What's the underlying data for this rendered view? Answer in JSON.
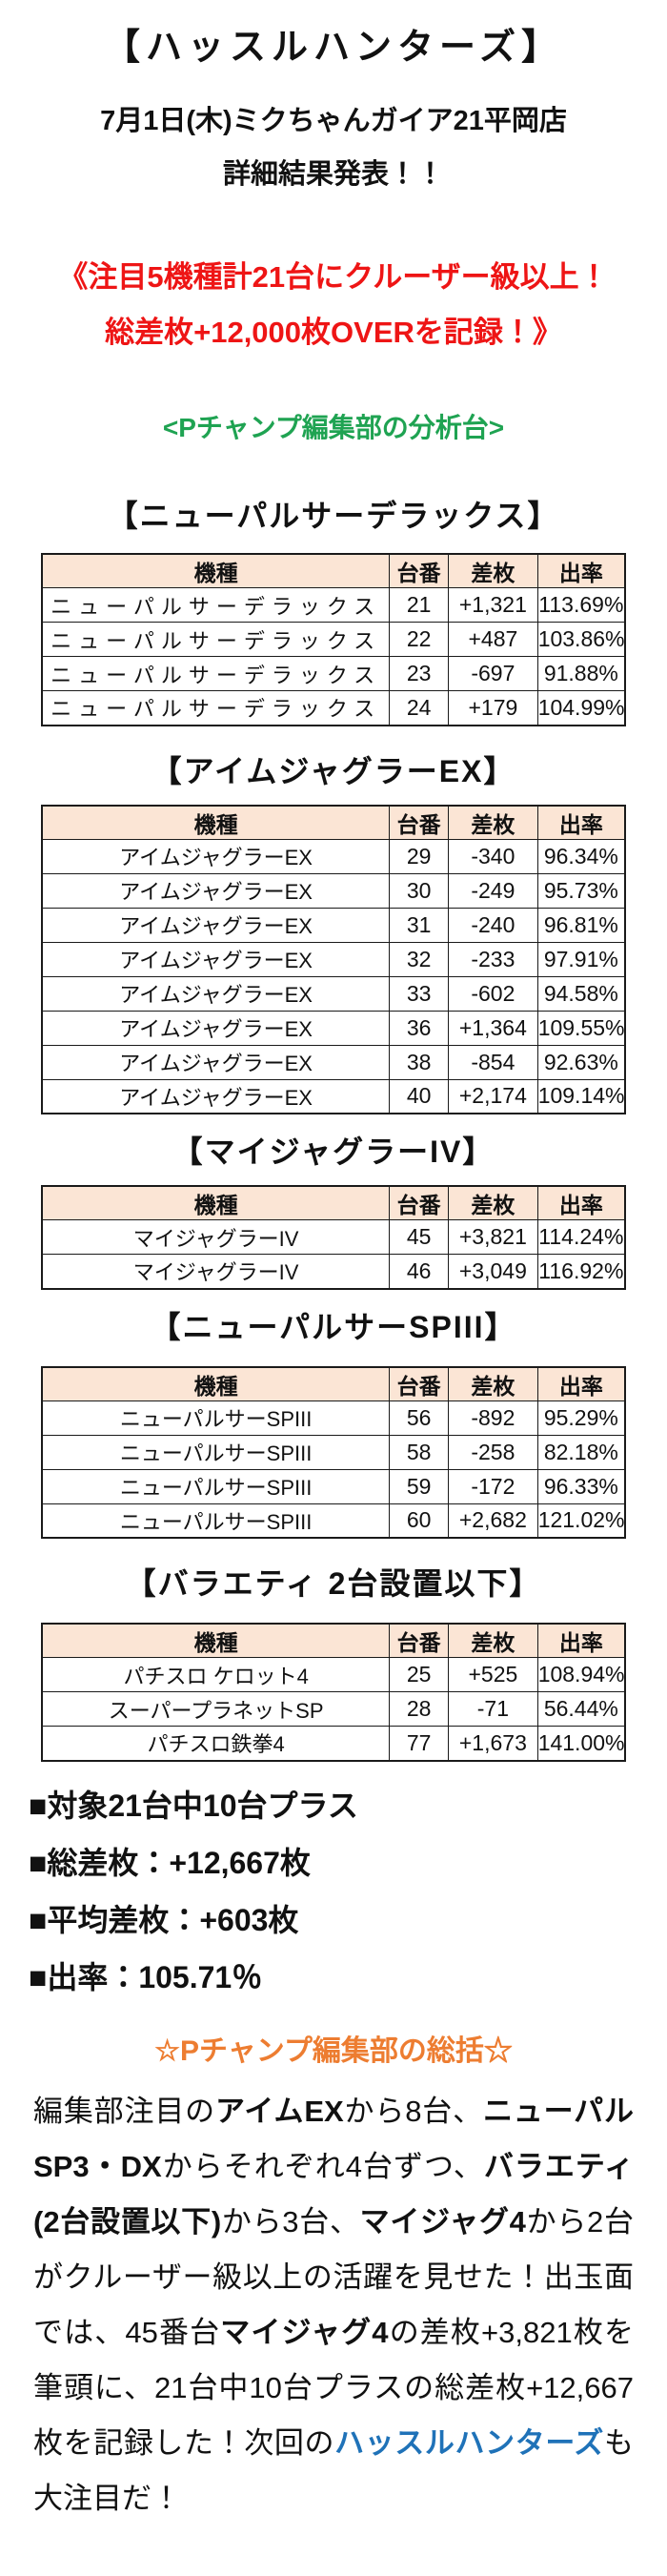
{
  "page": {
    "title": "【ハッスルハンターズ】",
    "subtitle_line1": "7月1日(木)ミクちゃんガイア21平岡店",
    "subtitle_line2": "詳細結果発表！！",
    "highlight_line1": "《注目5機種計21台にクルーザー級以上！",
    "highlight_line2": "総差枚+12,000枚OVERを記録！》",
    "analysis_label": "<Pチャンプ編集部の分析台>"
  },
  "colors": {
    "red": "#ee1515",
    "green": "#1fa352",
    "orange": "#ed7d31",
    "blue": "#1f72b8",
    "table_header_bg": "#fbe5d5"
  },
  "tables": [
    {
      "title": "【ニューパルサーデラックス】",
      "headers": [
        "機種",
        "台番",
        "差枚",
        "出率"
      ],
      "spaced": true,
      "rows": [
        {
          "machine": "ニューパルサーデラックス",
          "unit": "21",
          "diff": "+1,321",
          "rate": "113.69%"
        },
        {
          "machine": "ニューパルサーデラックス",
          "unit": "22",
          "diff": "+487",
          "rate": "103.86%"
        },
        {
          "machine": "ニューパルサーデラックス",
          "unit": "23",
          "diff": "-697",
          "rate": "91.88%"
        },
        {
          "machine": "ニューパルサーデラックス",
          "unit": "24",
          "diff": "+179",
          "rate": "104.99%"
        }
      ]
    },
    {
      "title": "【アイムジャグラーEX】",
      "headers": [
        "機種",
        "台番",
        "差枚",
        "出率"
      ],
      "spaced": false,
      "rows": [
        {
          "machine": "アイムジャグラーEX",
          "unit": "29",
          "diff": "-340",
          "rate": "96.34%"
        },
        {
          "machine": "アイムジャグラーEX",
          "unit": "30",
          "diff": "-249",
          "rate": "95.73%"
        },
        {
          "machine": "アイムジャグラーEX",
          "unit": "31",
          "diff": "-240",
          "rate": "96.81%"
        },
        {
          "machine": "アイムジャグラーEX",
          "unit": "32",
          "diff": "-233",
          "rate": "97.91%"
        },
        {
          "machine": "アイムジャグラーEX",
          "unit": "33",
          "diff": "-602",
          "rate": "94.58%"
        },
        {
          "machine": "アイムジャグラーEX",
          "unit": "36",
          "diff": "+1,364",
          "rate": "109.55%"
        },
        {
          "machine": "アイムジャグラーEX",
          "unit": "38",
          "diff": "-854",
          "rate": "92.63%"
        },
        {
          "machine": "アイムジャグラーEX",
          "unit": "40",
          "diff": "+2,174",
          "rate": "109.14%"
        }
      ]
    },
    {
      "title": "【マイジャグラーIV】",
      "headers": [
        "機種",
        "台番",
        "差枚",
        "出率"
      ],
      "spaced": false,
      "rows": [
        {
          "machine": "マイジャグラーIV",
          "unit": "45",
          "diff": "+3,821",
          "rate": "114.24%"
        },
        {
          "machine": "マイジャグラーIV",
          "unit": "46",
          "diff": "+3,049",
          "rate": "116.92%"
        }
      ]
    },
    {
      "title": "【ニューパルサーSPIII】",
      "headers": [
        "機種",
        "台番",
        "差枚",
        "出率"
      ],
      "spaced": false,
      "rows": [
        {
          "machine": "ニューパルサーSPIII",
          "unit": "56",
          "diff": "-892",
          "rate": "95.29%"
        },
        {
          "machine": "ニューパルサーSPIII",
          "unit": "58",
          "diff": "-258",
          "rate": "82.18%"
        },
        {
          "machine": "ニューパルサーSPIII",
          "unit": "59",
          "diff": "-172",
          "rate": "96.33%"
        },
        {
          "machine": "ニューパルサーSPIII",
          "unit": "60",
          "diff": "+2,682",
          "rate": "121.02%"
        }
      ]
    },
    {
      "title": "【バラエティ 2台設置以下】",
      "headers": [
        "機種",
        "台番",
        "差枚",
        "出率"
      ],
      "spaced": false,
      "rows": [
        {
          "machine": "パチスロ ケロット4",
          "unit": "25",
          "diff": "+525",
          "rate": "108.94%"
        },
        {
          "machine": "スーパープラネットSP",
          "unit": "28",
          "diff": "-71",
          "rate": "56.44%"
        },
        {
          "machine": "パチスロ鉄拳4",
          "unit": "77",
          "diff": "+1,673",
          "rate": "141.00%"
        }
      ]
    }
  ],
  "summary": {
    "items": [
      "■対象21台中10台プラス",
      "■総差枚：+12,667枚",
      "■平均差枚：+603枚",
      "■出率：105.71％"
    ]
  },
  "recap": {
    "title": "☆Pチャンプ編集部の総括☆",
    "segments": [
      {
        "text": "編集部注目の",
        "style": "normal"
      },
      {
        "text": "アイムEX",
        "style": "bold"
      },
      {
        "text": "から8台、",
        "style": "normal"
      },
      {
        "text": "ニューパルSP3・DX",
        "style": "bold"
      },
      {
        "text": "からそれぞれ4台ずつ、",
        "style": "normal"
      },
      {
        "text": "バラエティ(2台設置以下)",
        "style": "bold"
      },
      {
        "text": "から3台、",
        "style": "normal"
      },
      {
        "text": "マイジャグ4",
        "style": "bold"
      },
      {
        "text": "から2台がクルーザー級以上の活躍を見せた！出玉面では、45番台",
        "style": "normal"
      },
      {
        "text": "マイジャグ4",
        "style": "bold"
      },
      {
        "text": "の差枚+3,821枚を筆頭に、21台中10台プラスの総差枚+12,667枚を記録した！次回の",
        "style": "normal"
      },
      {
        "text": "ハッスルハンターズ",
        "style": "bold-blue"
      },
      {
        "text": "も大注目だ！",
        "style": "normal"
      }
    ]
  }
}
